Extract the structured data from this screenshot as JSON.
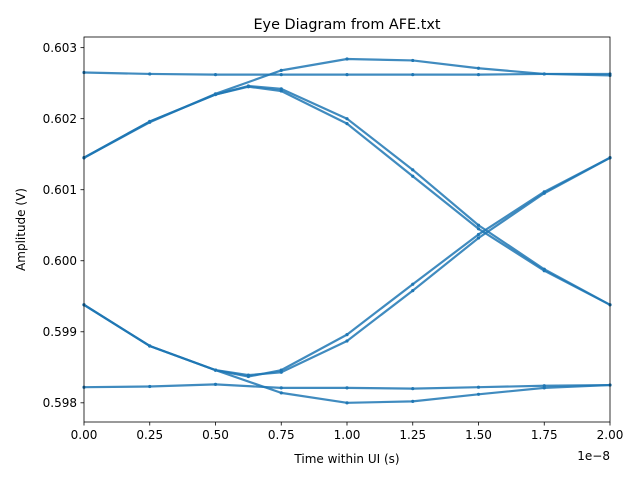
{
  "chart_data": {
    "type": "scatter",
    "title": "Eye Diagram from AFE.txt",
    "xlabel": "Time within UI (s)",
    "ylabel": "Amplitude (V)",
    "x_offset_label": "1e−8",
    "xlim": [
      0,
      2e-08
    ],
    "ylim": [
      0.59773,
      0.60315
    ],
    "xticks": [
      0,
      2.5e-09,
      5e-09,
      7.5e-09,
      1e-08,
      1.25e-08,
      1.5e-08,
      1.75e-08,
      2e-08
    ],
    "xtick_labels": [
      "0.00",
      "0.25",
      "0.50",
      "0.75",
      "1.00",
      "1.25",
      "1.50",
      "1.75",
      "2.00"
    ],
    "yticks": [
      0.598,
      0.599,
      0.6,
      0.601,
      0.602,
      0.603
    ],
    "ytick_labels": [
      "0.598",
      "0.599",
      "0.600",
      "0.601",
      "0.602",
      "0.603"
    ],
    "grid": false,
    "marker_color": "#1f77b4",
    "series": [
      {
        "x": [
          0,
          2.5e-09,
          5e-09,
          7.5e-09,
          1e-08,
          1.25e-08,
          1.5e-08,
          1.75e-08,
          2e-08
        ],
        "y": [
          0.60265,
          0.60263,
          0.60262,
          0.60262,
          0.60262,
          0.60262,
          0.60262,
          0.60263,
          0.60263
        ]
      },
      {
        "x": [
          0,
          2.5e-09,
          5e-09,
          7.5e-09,
          1e-08,
          1.25e-08,
          1.5e-08,
          1.75e-08,
          2e-08
        ],
        "y": [
          0.59822,
          0.59823,
          0.59826,
          0.59821,
          0.59821,
          0.5982,
          0.59822,
          0.59824,
          0.59825
        ]
      },
      {
        "x": [
          0,
          2.5e-09,
          5e-09,
          7.5e-09,
          1e-08,
          1.25e-08,
          1.5e-08,
          1.75e-08,
          2e-08
        ],
        "y": [
          0.60145,
          0.60195,
          0.60235,
          0.60268,
          0.60284,
          0.60282,
          0.60271,
          0.60263,
          0.60261
        ]
      },
      {
        "x": [
          0,
          2.5e-09,
          5e-09,
          7.5e-09,
          1e-08,
          1.25e-08,
          1.5e-08,
          1.75e-08,
          2e-08
        ],
        "y": [
          0.59938,
          0.5988,
          0.59846,
          0.59814,
          0.598,
          0.59802,
          0.59812,
          0.59821,
          0.59825
        ]
      },
      {
        "x": [
          0,
          2.5e-09,
          5e-09,
          6.25e-09,
          7.5e-09,
          1e-08,
          1.25e-08,
          1.5e-08,
          1.75e-08,
          2e-08
        ],
        "y": [
          0.60145,
          0.60196,
          0.60234,
          0.60246,
          0.60242,
          0.602,
          0.60128,
          0.6005,
          0.59988,
          0.59938
        ]
      },
      {
        "x": [
          0,
          2.5e-09,
          5e-09,
          6.25e-09,
          7.5e-09,
          1e-08,
          1.25e-08,
          1.5e-08,
          1.75e-08,
          2e-08
        ],
        "y": [
          0.60145,
          0.60196,
          0.60234,
          0.60245,
          0.60239,
          0.60193,
          0.60119,
          0.60045,
          0.59986,
          0.59938
        ]
      },
      {
        "x": [
          0,
          2.5e-09,
          5e-09,
          6.25e-09,
          7.5e-09,
          1e-08,
          1.25e-08,
          1.5e-08,
          1.75e-08,
          2e-08
        ],
        "y": [
          0.59938,
          0.5988,
          0.59846,
          0.59839,
          0.59843,
          0.59887,
          0.59958,
          0.60032,
          0.60095,
          0.60145
        ]
      },
      {
        "x": [
          0,
          2.5e-09,
          5e-09,
          6.25e-09,
          7.5e-09,
          1e-08,
          1.25e-08,
          1.5e-08,
          1.75e-08,
          2e-08
        ],
        "y": [
          0.59938,
          0.5988,
          0.59846,
          0.59837,
          0.59846,
          0.59896,
          0.59967,
          0.60037,
          0.60097,
          0.60145
        ]
      }
    ]
  }
}
